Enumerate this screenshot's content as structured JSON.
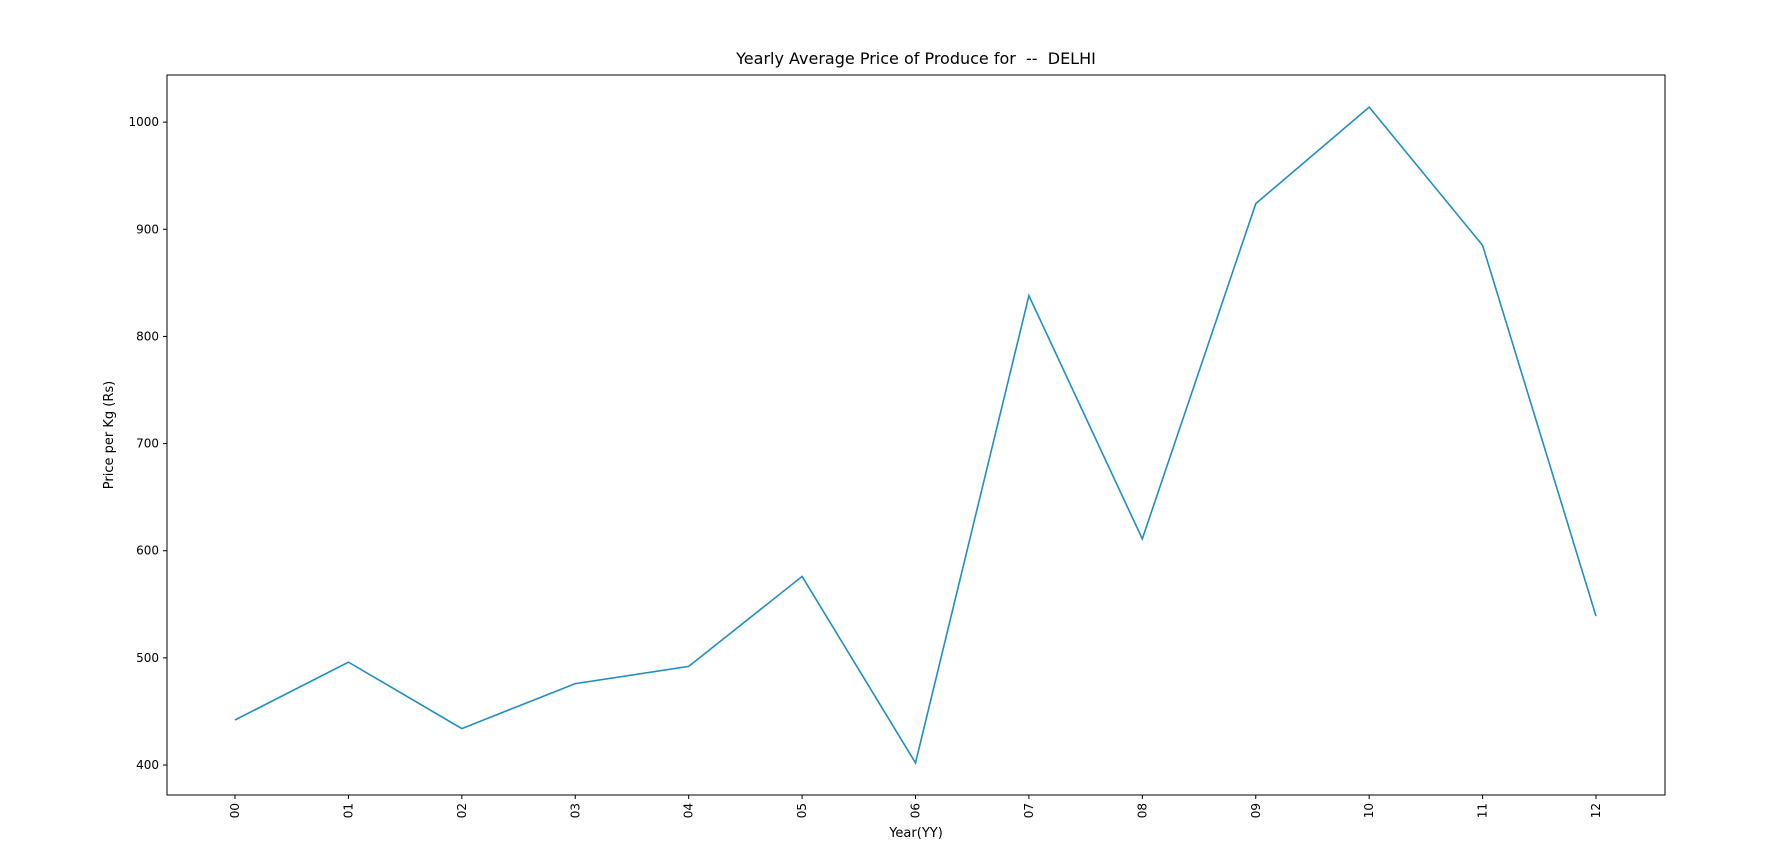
{
  "chart_data": {
    "type": "line",
    "title": "Yearly Average Price of Produce for  --  DELHI",
    "xlabel": "Year(YY)",
    "ylabel": "Price per Kg (Rs)",
    "categories": [
      "00",
      "01",
      "02",
      "03",
      "04",
      "05",
      "06",
      "07",
      "08",
      "09",
      "10",
      "11",
      "12"
    ],
    "series": [
      {
        "color": "#1f8fc0",
        "values": [
          442,
          496,
          434,
          476,
          492,
          576,
          402,
          838,
          611,
          924,
          1014,
          885,
          539
        ]
      }
    ],
    "yticks": [
      400,
      500,
      600,
      700,
      800,
      900,
      1000
    ],
    "ylim": [
      372,
      1044
    ],
    "grid": false,
    "legend": "none"
  }
}
